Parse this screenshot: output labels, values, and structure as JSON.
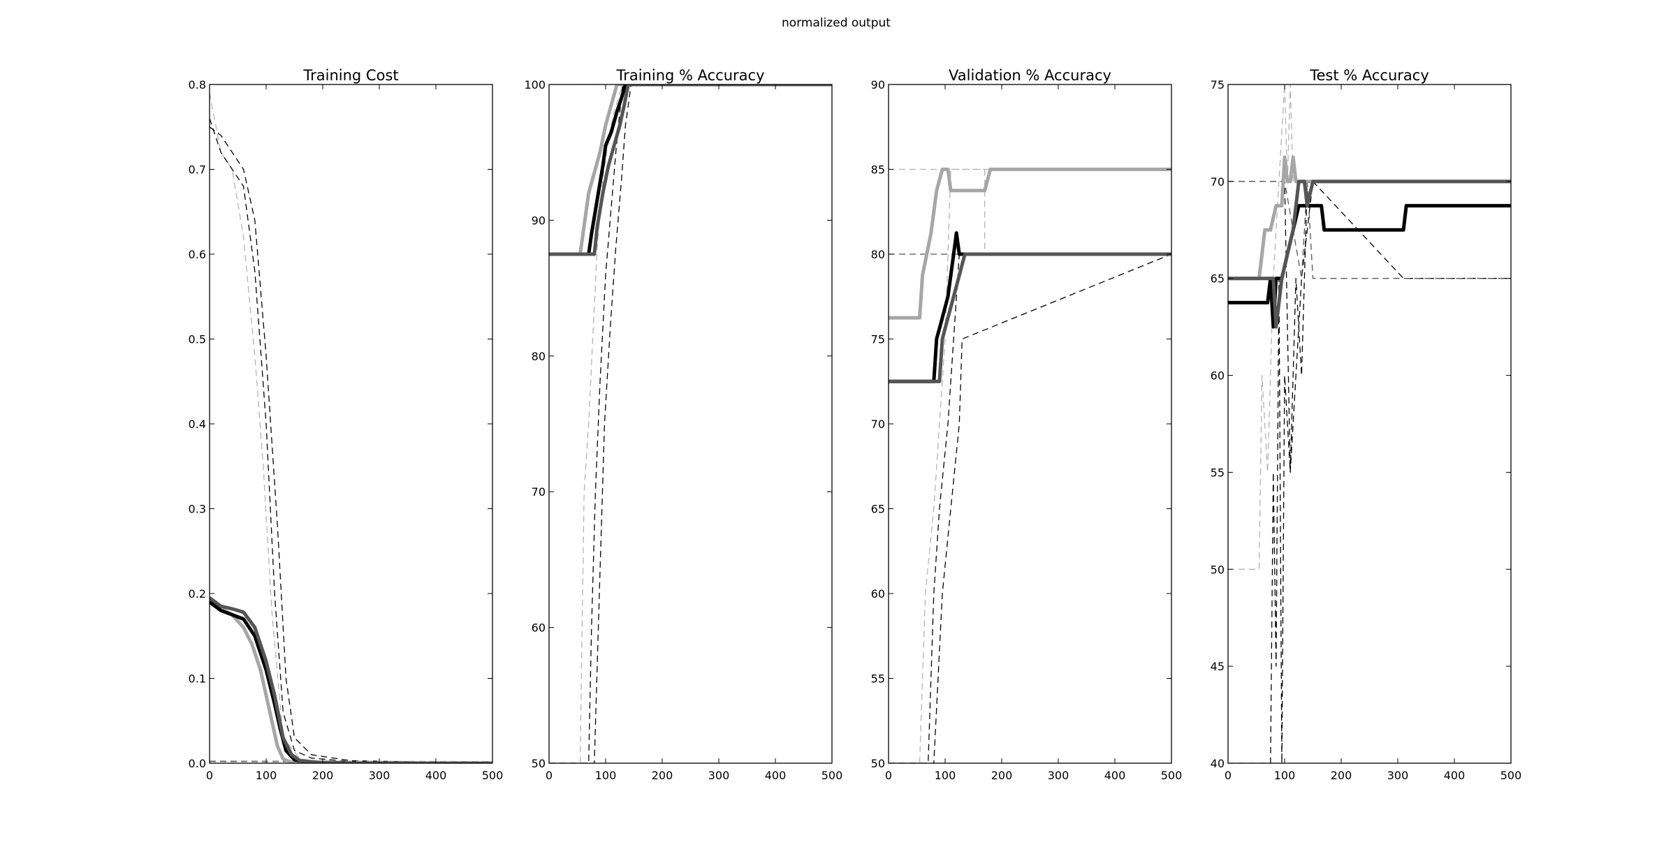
{
  "figure": {
    "suptitle": "normalized output"
  },
  "chart_data": [
    {
      "type": "line",
      "title": "Training Cost",
      "xlim": [
        0,
        500
      ],
      "ylim": [
        0,
        0.8
      ],
      "xticks": [
        0,
        100,
        200,
        300,
        400,
        500
      ],
      "yticks": [
        0.0,
        0.1,
        0.2,
        0.3,
        0.4,
        0.5,
        0.6,
        0.7,
        0.8
      ],
      "ytick_labels": [
        "0.0",
        "0.1",
        "0.2",
        "0.3",
        "0.4",
        "0.5",
        "0.6",
        "0.7",
        "0.8"
      ],
      "grid": false,
      "series": [
        {
          "color": "#b3b3b3",
          "style": "dashed",
          "width": 1.3,
          "x": [
            0,
            20,
            40,
            60,
            80,
            95,
            110,
            130,
            160,
            200,
            300,
            500
          ],
          "y": [
            0.79,
            0.72,
            0.7,
            0.62,
            0.48,
            0.35,
            0.18,
            0.03,
            0.005,
            0.002,
            0.001,
            0.0
          ]
        },
        {
          "color": "#000000",
          "style": "dashed",
          "width": 1.3,
          "x": [
            0,
            20,
            40,
            60,
            80,
            100,
            115,
            130,
            150,
            180,
            250,
            500
          ],
          "y": [
            0.76,
            0.72,
            0.7,
            0.68,
            0.58,
            0.4,
            0.2,
            0.06,
            0.015,
            0.006,
            0.002,
            0.0
          ]
        },
        {
          "color": "#000000",
          "style": "dashed",
          "width": 1.3,
          "x": [
            0,
            20,
            40,
            60,
            80,
            100,
            120,
            135,
            150,
            180,
            250,
            500
          ],
          "y": [
            0.75,
            0.74,
            0.72,
            0.7,
            0.64,
            0.48,
            0.28,
            0.1,
            0.03,
            0.01,
            0.003,
            0.0
          ]
        },
        {
          "color": "#555555",
          "style": "dashed",
          "width": 1.3,
          "x": [
            0,
            500
          ],
          "y": [
            0.002,
            0.001
          ]
        },
        {
          "color": "#b3b3b3",
          "style": "dashed",
          "width": 1.3,
          "x": [
            0,
            500
          ],
          "y": [
            0.003,
            0.002
          ]
        },
        {
          "color": "#a6a6a6",
          "style": "solid",
          "width": 5,
          "x": [
            0,
            20,
            40,
            60,
            75,
            90,
            100,
            110,
            120,
            130,
            145,
            170,
            220,
            500
          ],
          "y": [
            0.19,
            0.182,
            0.175,
            0.16,
            0.14,
            0.11,
            0.08,
            0.05,
            0.02,
            0.005,
            0.001,
            0.0005,
            0.0,
            0.0
          ]
        },
        {
          "color": "#000000",
          "style": "solid",
          "width": 5,
          "x": [
            0,
            20,
            40,
            60,
            80,
            100,
            115,
            125,
            135,
            150,
            180,
            250,
            500
          ],
          "y": [
            0.19,
            0.18,
            0.175,
            0.17,
            0.15,
            0.11,
            0.07,
            0.04,
            0.015,
            0.004,
            0.001,
            0.0,
            0.0
          ]
        },
        {
          "color": "#555555",
          "style": "solid",
          "width": 5,
          "x": [
            0,
            20,
            40,
            60,
            80,
            100,
            115,
            130,
            145,
            160,
            190,
            260,
            500
          ],
          "y": [
            0.195,
            0.185,
            0.182,
            0.178,
            0.16,
            0.12,
            0.08,
            0.03,
            0.01,
            0.003,
            0.001,
            0.0,
            0.0
          ]
        }
      ]
    },
    {
      "type": "line",
      "title": "Training % Accuracy",
      "xlim": [
        0,
        500
      ],
      "ylim": [
        50,
        100
      ],
      "xticks": [
        0,
        100,
        200,
        300,
        400,
        500
      ],
      "yticks": [
        50,
        60,
        70,
        80,
        90,
        100
      ],
      "ytick_labels": [
        "50",
        "60",
        "70",
        "80",
        "90",
        "100"
      ],
      "grid": false,
      "series": [
        {
          "color": "#b3b3b3",
          "style": "dashed",
          "width": 1.3,
          "x": [
            0,
            55,
            62,
            70,
            78,
            85,
            95,
            105,
            115,
            130,
            500
          ],
          "y": [
            50,
            50,
            70,
            75,
            82,
            88,
            93,
            96,
            98,
            100,
            100
          ]
        },
        {
          "color": "#000000",
          "style": "dashed",
          "width": 1.3,
          "x": [
            0,
            70,
            75,
            82,
            90,
            100,
            110,
            118,
            125,
            130,
            500
          ],
          "y": [
            50,
            50,
            60,
            70,
            78,
            86,
            91,
            95,
            98,
            100,
            100
          ]
        },
        {
          "color": "#000000",
          "style": "dashed",
          "width": 1.3,
          "x": [
            0,
            80,
            90,
            98,
            108,
            118,
            128,
            135,
            145,
            500
          ],
          "y": [
            50,
            50,
            64,
            75,
            82,
            88,
            93,
            97,
            100,
            100
          ]
        },
        {
          "color": "#b3b3b3",
          "style": "dashed",
          "width": 1.3,
          "x": [
            0,
            500
          ],
          "y": [
            100,
            100
          ]
        },
        {
          "color": "#a6a6a6",
          "style": "solid",
          "width": 5,
          "x": [
            0,
            55,
            60,
            70,
            80,
            90,
            100,
            110,
            120,
            130,
            500
          ],
          "y": [
            87.5,
            87.5,
            89,
            92,
            93.5,
            95,
            97,
            98.5,
            100,
            100,
            100
          ]
        },
        {
          "color": "#000000",
          "style": "solid",
          "width": 5,
          "x": [
            0,
            70,
            75,
            85,
            95,
            100,
            110,
            120,
            128,
            135,
            500
          ],
          "y": [
            87.5,
            87.5,
            89,
            91.5,
            94,
            95.5,
            96.5,
            98,
            99,
            100,
            100
          ]
        },
        {
          "color": "#555555",
          "style": "solid",
          "width": 5,
          "x": [
            0,
            80,
            85,
            95,
            105,
            115,
            125,
            133,
            140,
            500
          ],
          "y": [
            87.5,
            87.5,
            89.5,
            92,
            94,
            95.5,
            97,
            98.5,
            100,
            100
          ]
        }
      ]
    },
    {
      "type": "line",
      "title": "Validation % Accuracy",
      "xlim": [
        0,
        500
      ],
      "ylim": [
        50,
        90
      ],
      "xticks": [
        0,
        100,
        200,
        300,
        400,
        500
      ],
      "yticks": [
        50,
        55,
        60,
        65,
        70,
        75,
        80,
        85,
        90
      ],
      "ytick_labels": [
        "50",
        "55",
        "60",
        "65",
        "70",
        "75",
        "80",
        "85",
        "90"
      ],
      "grid": false,
      "series": [
        {
          "color": "#b3b3b3",
          "style": "dashed",
          "width": 1.3,
          "x": [
            0,
            55,
            65,
            80,
            90,
            100,
            110,
            170,
            170,
            500
          ],
          "y": [
            50,
            50,
            60,
            65,
            70,
            75,
            85,
            85,
            80,
            80
          ]
        },
        {
          "color": "#000000",
          "style": "dashed",
          "width": 1.3,
          "x": [
            0,
            70,
            80,
            90,
            105,
            115,
            125,
            500
          ],
          "y": [
            50,
            50,
            60,
            65,
            70,
            75,
            80,
            80
          ]
        },
        {
          "color": "#000000",
          "style": "dashed",
          "width": 1.3,
          "x": [
            0,
            80,
            95,
            110,
            125,
            130,
            500
          ],
          "y": [
            50,
            50,
            60,
            65,
            70,
            75,
            80
          ]
        },
        {
          "color": "#b3b3b3",
          "style": "dashed",
          "width": 1.3,
          "x": [
            0,
            100,
            500
          ],
          "y": [
            85,
            85,
            85
          ]
        },
        {
          "color": "#555555",
          "style": "dashed",
          "width": 1.3,
          "x": [
            0,
            120,
            500
          ],
          "y": [
            80,
            80,
            80
          ]
        },
        {
          "color": "#a6a6a6",
          "style": "solid",
          "width": 5,
          "x": [
            0,
            55,
            60,
            75,
            85,
            95,
            105,
            110,
            120,
            170,
            180,
            500
          ],
          "y": [
            76.25,
            76.25,
            78.75,
            81.25,
            83.75,
            85,
            85,
            83.75,
            83.75,
            83.75,
            85,
            85
          ]
        },
        {
          "color": "#000000",
          "style": "solid",
          "width": 5,
          "x": [
            0,
            80,
            85,
            95,
            105,
            110,
            115,
            120,
            125,
            130,
            500
          ],
          "y": [
            72.5,
            72.5,
            75,
            76.25,
            77.5,
            78.75,
            80,
            81.25,
            80,
            80,
            80
          ]
        },
        {
          "color": "#555555",
          "style": "solid",
          "width": 5,
          "x": [
            0,
            90,
            95,
            105,
            115,
            125,
            135,
            500
          ],
          "y": [
            72.5,
            72.5,
            75,
            76.25,
            77.5,
            78.75,
            80,
            80
          ]
        }
      ]
    },
    {
      "type": "line",
      "title": "Test % Accuracy",
      "xlim": [
        0,
        500
      ],
      "ylim": [
        40,
        75
      ],
      "xticks": [
        0,
        100,
        200,
        300,
        400,
        500
      ],
      "yticks": [
        40,
        45,
        50,
        55,
        60,
        65,
        70,
        75
      ],
      "ytick_labels": [
        "40",
        "45",
        "50",
        "55",
        "60",
        "65",
        "70",
        "75"
      ],
      "grid": false,
      "series": [
        {
          "color": "#b3b3b3",
          "style": "dashed",
          "width": 1.3,
          "x": [
            0,
            55,
            60,
            70,
            80,
            90,
            100,
            105,
            110,
            115,
            120,
            500
          ],
          "y": [
            50,
            50,
            60,
            55,
            65,
            70,
            75,
            70,
            75,
            70,
            70,
            70
          ]
        },
        {
          "color": "#000000",
          "style": "dashed",
          "width": 1.3,
          "x": [
            0,
            75,
            80,
            85,
            90,
            95,
            100,
            110,
            120,
            130,
            140,
            500
          ],
          "y": [
            40,
            40,
            55,
            45,
            65,
            40,
            60,
            55,
            65,
            60,
            70,
            70
          ]
        },
        {
          "color": "#000000",
          "style": "dashed",
          "width": 1.3,
          "x": [
            0,
            100,
            110,
            120,
            130,
            150,
            310,
            500
          ],
          "y": [
            70,
            70,
            55,
            60,
            65,
            70,
            65,
            65
          ]
        },
        {
          "color": "#555555",
          "style": "dashed",
          "width": 1.3,
          "x": [
            0,
            100,
            130,
            140,
            150,
            500
          ],
          "y": [
            70,
            70,
            65,
            70,
            65,
            65
          ]
        },
        {
          "color": "#a6a6a6",
          "style": "solid",
          "width": 5,
          "x": [
            0,
            55,
            65,
            75,
            85,
            95,
            100,
            105,
            110,
            115,
            120,
            125,
            500
          ],
          "y": [
            65,
            65,
            67.5,
            67.5,
            68.75,
            68.75,
            71.25,
            70,
            70,
            71.25,
            70,
            70,
            70
          ]
        },
        {
          "color": "#000000",
          "style": "solid",
          "width": 5,
          "x": [
            0,
            70,
            75,
            80,
            85,
            95,
            105,
            115,
            125,
            135,
            145,
            165,
            170,
            310,
            315,
            500
          ],
          "y": [
            63.75,
            63.75,
            65,
            62.5,
            65,
            65,
            66.25,
            67.5,
            68.75,
            68.75,
            68.75,
            68.75,
            67.5,
            67.5,
            68.75,
            68.75
          ]
        },
        {
          "color": "#555555",
          "style": "solid",
          "width": 5,
          "x": [
            0,
            80,
            85,
            95,
            105,
            115,
            125,
            135,
            140,
            150,
            500
          ],
          "y": [
            65,
            65,
            62.5,
            65,
            66.25,
            67.5,
            70,
            70,
            68.75,
            70,
            70
          ]
        }
      ]
    }
  ]
}
